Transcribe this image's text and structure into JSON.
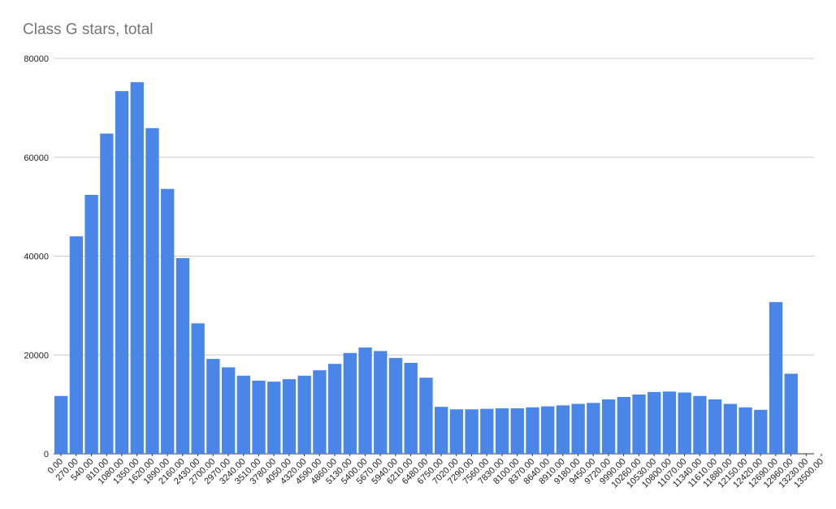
{
  "chart_data": {
    "type": "histogram",
    "title": "Class G stars, total",
    "color": "#4a86e8",
    "grid": true,
    "bins": [
      0,
      270,
      540,
      810,
      1080,
      1350,
      1620,
      1890,
      2160,
      2430,
      2700,
      2970,
      3240,
      3510,
      3780,
      4050,
      4320,
      4590,
      4860,
      5130,
      5400,
      5670,
      5940,
      6210,
      6480,
      6750,
      7020,
      7290,
      7560,
      7830,
      8100,
      8370,
      8640,
      8910,
      9180,
      9450,
      9720,
      9990,
      10260,
      10530,
      10800,
      11070,
      11340,
      11610,
      11880,
      12150,
      12420,
      12690,
      12960,
      13230
    ],
    "values": [
      11700,
      44000,
      52400,
      64800,
      73400,
      75200,
      65900,
      53600,
      39600,
      26400,
      19200,
      17500,
      15800,
      14800,
      14600,
      15100,
      15800,
      16900,
      18200,
      20400,
      21500,
      20800,
      19400,
      18400,
      15400,
      9500,
      9000,
      9000,
      9100,
      9200,
      9200,
      9400,
      9600,
      9800,
      10100,
      10300,
      11000,
      11500,
      12000,
      12500,
      12600,
      12400,
      11700,
      11000,
      10100,
      9400,
      8900,
      30700,
      16200
    ],
    "xlim": [
      0,
      13500
    ],
    "xticks": [
      {
        "value": 0,
        "label": "0.00"
      },
      {
        "value": 270,
        "label": "270.00"
      },
      {
        "value": 540,
        "label": "540.00"
      },
      {
        "value": 810,
        "label": "810.00"
      },
      {
        "value": 1080,
        "label": "1080.00"
      },
      {
        "value": 1350,
        "label": "1350.00"
      },
      {
        "value": 1620,
        "label": "1620.00"
      },
      {
        "value": 1890,
        "label": "1890.00"
      },
      {
        "value": 2160,
        "label": "2160.00"
      },
      {
        "value": 2430,
        "label": "2430.00"
      },
      {
        "value": 2700,
        "label": "2700.00"
      },
      {
        "value": 2970,
        "label": "2970.00"
      },
      {
        "value": 3240,
        "label": "3240.00"
      },
      {
        "value": 3510,
        "label": "3510.00"
      },
      {
        "value": 3780,
        "label": "3780.00"
      },
      {
        "value": 4050,
        "label": "4050.00"
      },
      {
        "value": 4320,
        "label": "4320.00"
      },
      {
        "value": 4590,
        "label": "4590.00"
      },
      {
        "value": 4860,
        "label": "4860.00"
      },
      {
        "value": 5130,
        "label": "5130.00"
      },
      {
        "value": 5400,
        "label": "5400.00"
      },
      {
        "value": 5670,
        "label": "5670.00"
      },
      {
        "value": 5940,
        "label": "5940.00"
      },
      {
        "value": 6210,
        "label": "6210.00"
      },
      {
        "value": 6480,
        "label": "6480.00"
      },
      {
        "value": 6750,
        "label": "6750.00"
      },
      {
        "value": 7020,
        "label": "7020.00"
      },
      {
        "value": 7290,
        "label": "7290.00"
      },
      {
        "value": 7560,
        "label": "7560.00"
      },
      {
        "value": 7830,
        "label": "7830.00"
      },
      {
        "value": 8100,
        "label": "8100.00"
      },
      {
        "value": 8370,
        "label": "8370.00"
      },
      {
        "value": 8640,
        "label": "8640.00"
      },
      {
        "value": 8910,
        "label": "8910.00"
      },
      {
        "value": 9180,
        "label": "9180.00"
      },
      {
        "value": 9450,
        "label": "9450.00"
      },
      {
        "value": 9720,
        "label": "9720.00"
      },
      {
        "value": 9990,
        "label": "9990.00"
      },
      {
        "value": 10260,
        "label": "10260.00"
      },
      {
        "value": 10530,
        "label": "10530.00"
      },
      {
        "value": 10800,
        "label": "10800.00"
      },
      {
        "value": 11070,
        "label": "11070.00"
      },
      {
        "value": 11340,
        "label": "11340.00"
      },
      {
        "value": 11610,
        "label": "11610.00"
      },
      {
        "value": 11880,
        "label": "11880.00"
      },
      {
        "value": 12150,
        "label": "12150.00"
      },
      {
        "value": 12420,
        "label": "12420.00"
      },
      {
        "value": 12690,
        "label": "12690.00"
      },
      {
        "value": 12960,
        "label": "12960.00"
      },
      {
        "value": 13230,
        "label": "13230.00"
      },
      {
        "value": 13500,
        "label": "13500.00"
      }
    ],
    "ylim": [
      0,
      80000
    ],
    "yticks": [
      0,
      20000,
      40000,
      60000,
      80000
    ]
  }
}
